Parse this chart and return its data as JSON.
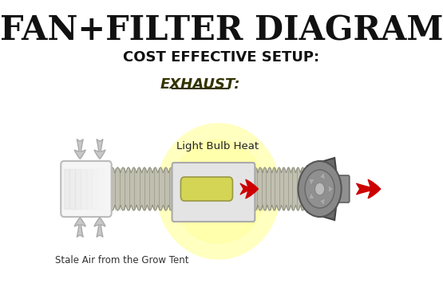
{
  "title": "FAN+FILTER DIAGRAM",
  "subtitle": "COST EFFECTIVE SETUP:",
  "section_label": "EXHAUST:",
  "label_light": "Light Bulb Heat",
  "label_stale": "Stale Air from the Grow Tent",
  "bg_color": "#ffffff",
  "title_color": "#111111",
  "subtitle_color": "#111111",
  "section_color": "#333300",
  "arrow_red": "#cc0000",
  "duct_color": "#c0bfb0",
  "glow_color": "#fffff0",
  "filter_face": "#f5f5f5",
  "box_face": "#e4e4e4",
  "bulb_color": "#d4d455",
  "fan_dark": "#6a6a6a",
  "fan_mid": "#888888",
  "fan_light": "#aaaaaa"
}
